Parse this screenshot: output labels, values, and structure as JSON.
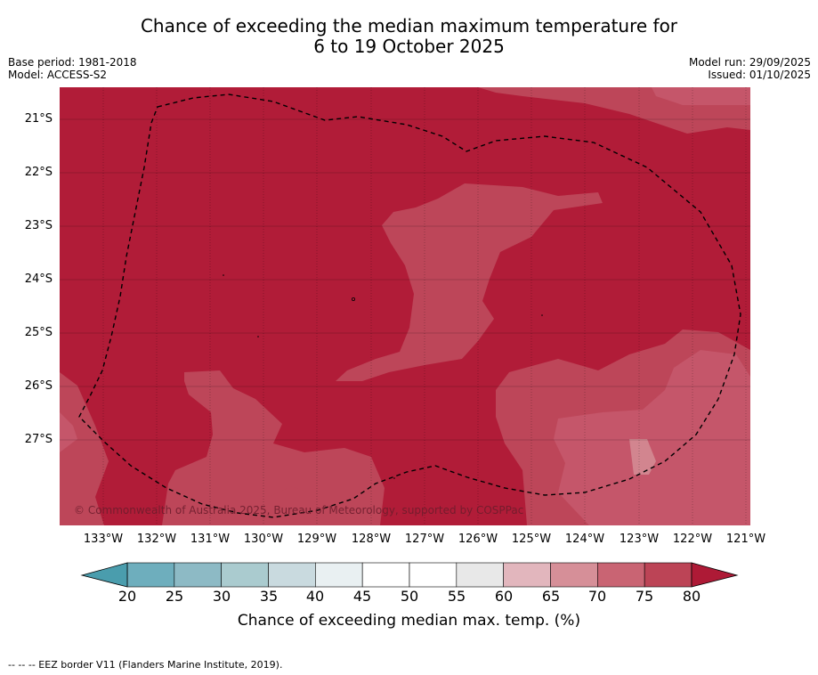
{
  "header": {
    "title_line1": "Chance of exceeding the median maximum temperature for",
    "title_line2": "6 to 19 October 2025",
    "base_period": "Base period: 1981-2018",
    "model": "Model: ACCESS-S2",
    "model_run": "Model run: 29/09/2025",
    "issued": "Issued: 01/10/2025"
  },
  "map": {
    "copyright": "© Commonwealth of Australia 2025, Bureau of Meteorology, supported by COSPPac",
    "lat_labels": [
      "21°S",
      "22°S",
      "23°S",
      "24°S",
      "25°S",
      "26°S",
      "27°S"
    ],
    "lon_labels": [
      "133°W",
      "132°W",
      "131°W",
      "130°W",
      "129°W",
      "128°W",
      "127°W",
      "126°W",
      "125°W",
      "124°W",
      "123°W",
      "122°W",
      "121°W"
    ],
    "class_colors": {
      "c70_75": "#c5566a",
      "c75_80": "#bd4659",
      "c80_plus": "#b11c38",
      "c65_70": "#d2858f"
    }
  },
  "colorbar": {
    "ticks": [
      "20",
      "25",
      "30",
      "35",
      "40",
      "45",
      "50",
      "55",
      "60",
      "65",
      "70",
      "75",
      "80"
    ],
    "colors": [
      "#6eaebd",
      "#8dbac5",
      "#aacbcf",
      "#c9dadf",
      "#e9f0f2",
      "#ffffff",
      "#ffffff",
      "#e8e8e8",
      "#e2b6bd",
      "#d68f98",
      "#c96473",
      "#bc4456"
    ],
    "below_color": "#4a9dad",
    "above_color": "#ae1a36",
    "label": "Chance of exceeding median max. temp. (%)"
  },
  "footnote": "--  --  -- EEZ border V11 (Flanders Marine Institute, 2019)."
}
